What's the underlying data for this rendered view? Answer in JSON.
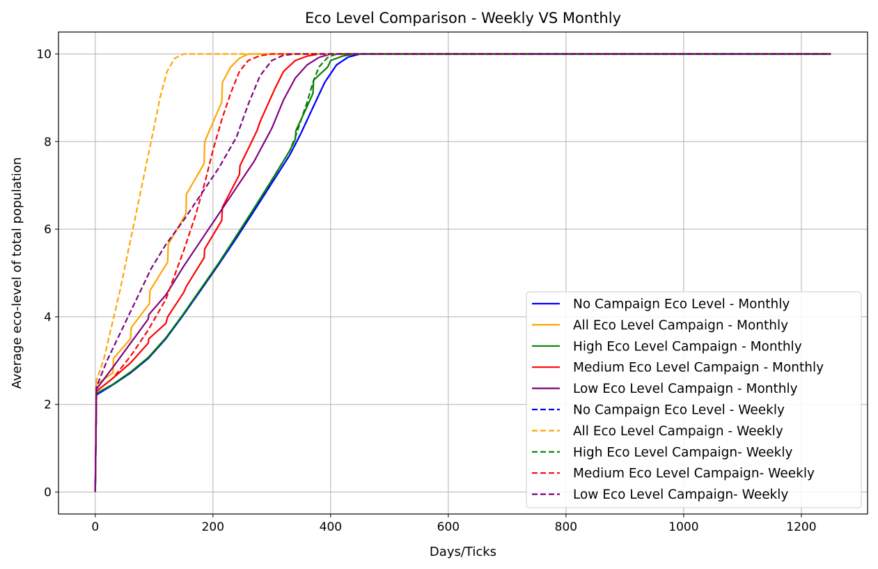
{
  "chart_data": {
    "type": "line",
    "title": "Eco Level Comparison - Weekly VS Monthly",
    "xlabel": "Days/Ticks",
    "ylabel": "Average eco-level of total population",
    "xlim": [
      -62.5,
      1312.5
    ],
    "ylim": [
      -0.5,
      10.5
    ],
    "xticks": [
      0,
      200,
      400,
      600,
      800,
      1000,
      1200
    ],
    "yticks": [
      0,
      2,
      4,
      6,
      8,
      10
    ],
    "grid": true,
    "legend_position": "lower-right",
    "series": [
      {
        "name": "No Campaign Eco Level - Monthly",
        "color": "#0000ff",
        "dash": "solid",
        "points": [
          [
            0,
            0
          ],
          [
            2,
            2.22
          ],
          [
            30,
            2.45
          ],
          [
            60,
            2.72
          ],
          [
            90,
            3.05
          ],
          [
            120,
            3.5
          ],
          [
            150,
            4.05
          ],
          [
            180,
            4.62
          ],
          [
            210,
            5.2
          ],
          [
            240,
            5.8
          ],
          [
            270,
            6.42
          ],
          [
            300,
            7.05
          ],
          [
            330,
            7.68
          ],
          [
            350,
            8.2
          ],
          [
            370,
            8.78
          ],
          [
            390,
            9.35
          ],
          [
            410,
            9.75
          ],
          [
            430,
            9.93
          ],
          [
            450,
            10
          ],
          [
            1250,
            10
          ]
        ]
      },
      {
        "name": "All Eco Level Campaign - Monthly",
        "color": "#ffa500",
        "dash": "solid",
        "points": [
          [
            0,
            0
          ],
          [
            2,
            2.45
          ],
          [
            30,
            2.72
          ],
          [
            31,
            3.05
          ],
          [
            60,
            3.5
          ],
          [
            61,
            3.75
          ],
          [
            92,
            4.3
          ],
          [
            93,
            4.6
          ],
          [
            123,
            5.25
          ],
          [
            124,
            5.65
          ],
          [
            154,
            6.35
          ],
          [
            155,
            6.8
          ],
          [
            185,
            7.5
          ],
          [
            186,
            8.0
          ],
          [
            215,
            8.9
          ],
          [
            216,
            9.35
          ],
          [
            230,
            9.7
          ],
          [
            245,
            9.9
          ],
          [
            260,
            10
          ],
          [
            1250,
            10
          ]
        ]
      },
      {
        "name": "High Eco Level Campaign - Monthly",
        "color": "#008000",
        "dash": "solid",
        "points": [
          [
            0,
            0
          ],
          [
            2,
            2.25
          ],
          [
            30,
            2.46
          ],
          [
            60,
            2.74
          ],
          [
            90,
            3.07
          ],
          [
            120,
            3.52
          ],
          [
            150,
            4.07
          ],
          [
            180,
            4.65
          ],
          [
            210,
            5.23
          ],
          [
            240,
            5.85
          ],
          [
            270,
            6.48
          ],
          [
            300,
            7.12
          ],
          [
            330,
            7.78
          ],
          [
            340,
            8.05
          ],
          [
            341,
            8.25
          ],
          [
            360,
            8.8
          ],
          [
            370,
            9.1
          ],
          [
            371,
            9.4
          ],
          [
            395,
            9.7
          ],
          [
            400,
            9.85
          ],
          [
            420,
            9.95
          ],
          [
            440,
            10
          ],
          [
            1250,
            10
          ]
        ]
      },
      {
        "name": "Medium Eco Level Campaign - Monthly",
        "color": "#ff0000",
        "dash": "solid",
        "points": [
          [
            0,
            0
          ],
          [
            2,
            2.3
          ],
          [
            30,
            2.6
          ],
          [
            60,
            2.95
          ],
          [
            90,
            3.4
          ],
          [
            91,
            3.5
          ],
          [
            120,
            3.85
          ],
          [
            123,
            4.0
          ],
          [
            150,
            4.55
          ],
          [
            155,
            4.7
          ],
          [
            185,
            5.35
          ],
          [
            186,
            5.55
          ],
          [
            215,
            6.2
          ],
          [
            216,
            6.5
          ],
          [
            245,
            7.25
          ],
          [
            246,
            7.45
          ],
          [
            275,
            8.25
          ],
          [
            280,
            8.45
          ],
          [
            305,
            9.2
          ],
          [
            320,
            9.6
          ],
          [
            340,
            9.85
          ],
          [
            360,
            9.95
          ],
          [
            380,
            10
          ],
          [
            1250,
            10
          ]
        ]
      },
      {
        "name": "Low Eco Level Campaign - Monthly",
        "color": "#800080",
        "dash": "solid",
        "points": [
          [
            0,
            0
          ],
          [
            2,
            2.35
          ],
          [
            30,
            2.85
          ],
          [
            60,
            3.4
          ],
          [
            90,
            3.95
          ],
          [
            91,
            4.05
          ],
          [
            120,
            4.5
          ],
          [
            150,
            5.15
          ],
          [
            180,
            5.75
          ],
          [
            210,
            6.35
          ],
          [
            240,
            6.95
          ],
          [
            270,
            7.55
          ],
          [
            300,
            8.3
          ],
          [
            320,
            8.95
          ],
          [
            340,
            9.45
          ],
          [
            360,
            9.75
          ],
          [
            380,
            9.92
          ],
          [
            400,
            10
          ],
          [
            1250,
            10
          ]
        ]
      },
      {
        "name": "No Campaign Eco Level - Weekly",
        "color": "#0000ff",
        "dash": "dashed",
        "points": [
          [
            0,
            0
          ],
          [
            2,
            2.22
          ],
          [
            30,
            2.45
          ],
          [
            60,
            2.72
          ],
          [
            90,
            3.05
          ],
          [
            120,
            3.5
          ],
          [
            150,
            4.05
          ],
          [
            180,
            4.62
          ],
          [
            210,
            5.2
          ],
          [
            240,
            5.8
          ],
          [
            270,
            6.42
          ],
          [
            300,
            7.05
          ],
          [
            330,
            7.68
          ],
          [
            350,
            8.2
          ],
          [
            370,
            8.78
          ],
          [
            390,
            9.35
          ],
          [
            410,
            9.75
          ],
          [
            430,
            9.93
          ],
          [
            450,
            10
          ],
          [
            1250,
            10
          ]
        ]
      },
      {
        "name": "All Eco Level Campaign - Weekly",
        "color": "#ffa500",
        "dash": "dashed",
        "points": [
          [
            0,
            0
          ],
          [
            2,
            2.55
          ],
          [
            14,
            3.0
          ],
          [
            28,
            3.8
          ],
          [
            42,
            4.6
          ],
          [
            56,
            5.5
          ],
          [
            70,
            6.4
          ],
          [
            84,
            7.3
          ],
          [
            98,
            8.2
          ],
          [
            110,
            9.0
          ],
          [
            122,
            9.6
          ],
          [
            135,
            9.9
          ],
          [
            150,
            10
          ],
          [
            730,
            10
          ]
        ]
      },
      {
        "name": "High Eco Level Campaign- Weekly",
        "color": "#008000",
        "dash": "dashed",
        "points": [
          [
            0,
            0
          ],
          [
            2,
            2.25
          ],
          [
            30,
            2.46
          ],
          [
            60,
            2.74
          ],
          [
            90,
            3.07
          ],
          [
            120,
            3.52
          ],
          [
            150,
            4.07
          ],
          [
            180,
            4.65
          ],
          [
            210,
            5.23
          ],
          [
            240,
            5.85
          ],
          [
            270,
            6.48
          ],
          [
            300,
            7.12
          ],
          [
            330,
            7.78
          ],
          [
            340,
            8.1
          ],
          [
            350,
            8.5
          ],
          [
            360,
            8.9
          ],
          [
            370,
            9.35
          ],
          [
            380,
            9.7
          ],
          [
            395,
            9.92
          ],
          [
            410,
            10
          ],
          [
            1250,
            10
          ]
        ]
      },
      {
        "name": "Medium Eco Level Campaign- Weekly",
        "color": "#ff0000",
        "dash": "dashed",
        "points": [
          [
            0,
            0
          ],
          [
            2,
            2.3
          ],
          [
            30,
            2.6
          ],
          [
            60,
            3.1
          ],
          [
            90,
            3.7
          ],
          [
            120,
            4.4
          ],
          [
            150,
            5.5
          ],
          [
            170,
            6.3
          ],
          [
            185,
            7.0
          ],
          [
            200,
            7.8
          ],
          [
            215,
            8.5
          ],
          [
            230,
            9.1
          ],
          [
            245,
            9.6
          ],
          [
            260,
            9.85
          ],
          [
            280,
            9.96
          ],
          [
            300,
            10
          ],
          [
            1250,
            10
          ]
        ]
      },
      {
        "name": "Low Eco Level Campaign- Weekly",
        "color": "#800080",
        "dash": "dashed",
        "points": [
          [
            0,
            0
          ],
          [
            2,
            2.4
          ],
          [
            20,
            3.0
          ],
          [
            45,
            3.7
          ],
          [
            70,
            4.4
          ],
          [
            95,
            5.1
          ],
          [
            120,
            5.65
          ],
          [
            150,
            6.2
          ],
          [
            180,
            6.8
          ],
          [
            210,
            7.4
          ],
          [
            240,
            8.1
          ],
          [
            260,
            8.85
          ],
          [
            280,
            9.5
          ],
          [
            300,
            9.85
          ],
          [
            320,
            9.97
          ],
          [
            340,
            10
          ],
          [
            1250,
            10
          ]
        ]
      }
    ]
  }
}
